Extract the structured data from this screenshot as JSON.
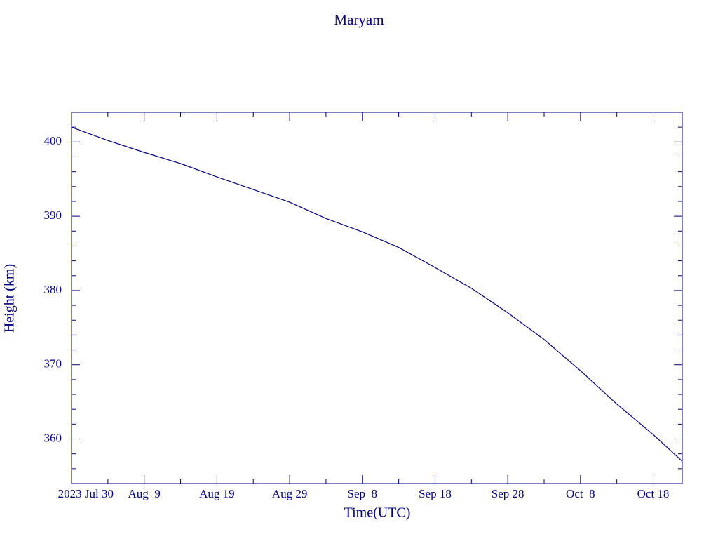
{
  "chart_data": {
    "type": "line",
    "title": "Maryam",
    "x_label": "Time(UTC)",
    "y_label": "Height (km)",
    "x": [
      "2023-07-30",
      "2023-08-04",
      "2023-08-09",
      "2023-08-14",
      "2023-08-19",
      "2023-08-24",
      "2023-08-29",
      "2023-09-03",
      "2023-09-08",
      "2023-09-13",
      "2023-09-18",
      "2023-09-23",
      "2023-09-28",
      "2023-10-03",
      "2023-10-08",
      "2023-10-13",
      "2023-10-18",
      "2023-10-22"
    ],
    "series": [
      {
        "name": "Maryam",
        "color": "#000080",
        "values": [
          402.0,
          400.2,
          398.6,
          397.1,
          395.3,
          393.6,
          391.9,
          389.7,
          387.9,
          385.8,
          383.1,
          380.3,
          377.0,
          373.4,
          369.2,
          364.7,
          360.6,
          357.0
        ]
      }
    ],
    "xlim": [
      "2023-07-30",
      "2023-10-22"
    ],
    "xticks": [
      {
        "value": "2023-07-30",
        "label": "2023 Jul 30"
      },
      {
        "value": "2023-08-09",
        "label": "Aug  9"
      },
      {
        "value": "2023-08-19",
        "label": "Aug 19"
      },
      {
        "value": "2023-08-29",
        "label": "Aug 29"
      },
      {
        "value": "2023-09-08",
        "label": "Sep  8"
      },
      {
        "value": "2023-09-18",
        "label": "Sep 18"
      },
      {
        "value": "2023-09-28",
        "label": "Sep 28"
      },
      {
        "value": "2023-10-08",
        "label": "Oct  8"
      },
      {
        "value": "2023-10-18",
        "label": "Oct 18"
      }
    ],
    "xminorticks": [
      "2023-08-04",
      "2023-08-14",
      "2023-08-24",
      "2023-09-03",
      "2023-09-13",
      "2023-09-23",
      "2023-10-03",
      "2023-10-13"
    ],
    "ylim": [
      354,
      404
    ],
    "yticks": [
      360,
      370,
      380,
      390,
      400
    ],
    "yminorticks": [
      356,
      358,
      362,
      364,
      366,
      368,
      372,
      374,
      376,
      378,
      382,
      384,
      386,
      388,
      392,
      394,
      396,
      398,
      402
    ],
    "grid": false
  }
}
